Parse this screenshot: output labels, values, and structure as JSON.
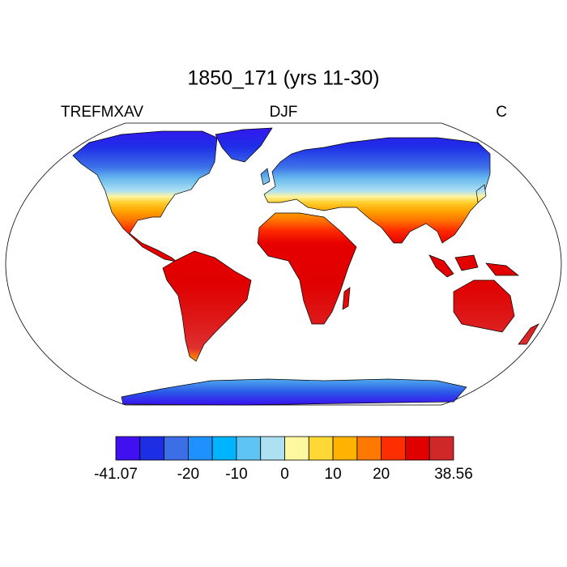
{
  "title": "1850_171 (yrs 11-30)",
  "left_label": "TREFMXAV",
  "center_label": "DJF",
  "right_label": "C",
  "colorbar": {
    "colors": [
      "#4010f0",
      "#1e2ee5",
      "#3c6fe6",
      "#1e90ff",
      "#00b4ff",
      "#5ec4f4",
      "#aee0f4",
      "#fff8a0",
      "#ffd835",
      "#ffb300",
      "#ff7800",
      "#ff2e00",
      "#e10000",
      "#d02828"
    ],
    "boundaries": [
      -41.07,
      null,
      null,
      -20,
      null,
      -10,
      null,
      0,
      null,
      10,
      null,
      20,
      null,
      null,
      38.56
    ]
  }
}
